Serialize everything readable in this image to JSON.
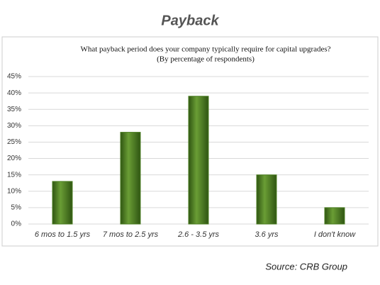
{
  "chart_data": {
    "type": "bar",
    "title": "Payback",
    "subtitle": [
      "What payback period does your company typically require for capital upgrades?",
      "(By percentage of respondents)"
    ],
    "categories": [
      "6 mos to 1.5 yrs",
      "7 mos to 2.5 yrs",
      "2.6 - 3.5 yrs",
      "3.6 yrs",
      "I don't know"
    ],
    "values": [
      13,
      28,
      39,
      15,
      5
    ],
    "color": "#4b7d22",
    "ylim": [
      0,
      45
    ],
    "yticks": [
      {
        "value": 0,
        "label": "0%"
      },
      {
        "value": 5,
        "label": "5%"
      },
      {
        "value": 10,
        "label": "10%"
      },
      {
        "value": 15,
        "label": "15%"
      },
      {
        "value": 20,
        "label": "20%"
      },
      {
        "value": 25,
        "label": "25%"
      },
      {
        "value": 30,
        "label": "30%"
      },
      {
        "value": 35,
        "label": "35%"
      },
      {
        "value": 40,
        "label": "40%"
      },
      {
        "value": 45,
        "label": "45%"
      }
    ],
    "grid": true,
    "source": "Source: CRB Group"
  }
}
